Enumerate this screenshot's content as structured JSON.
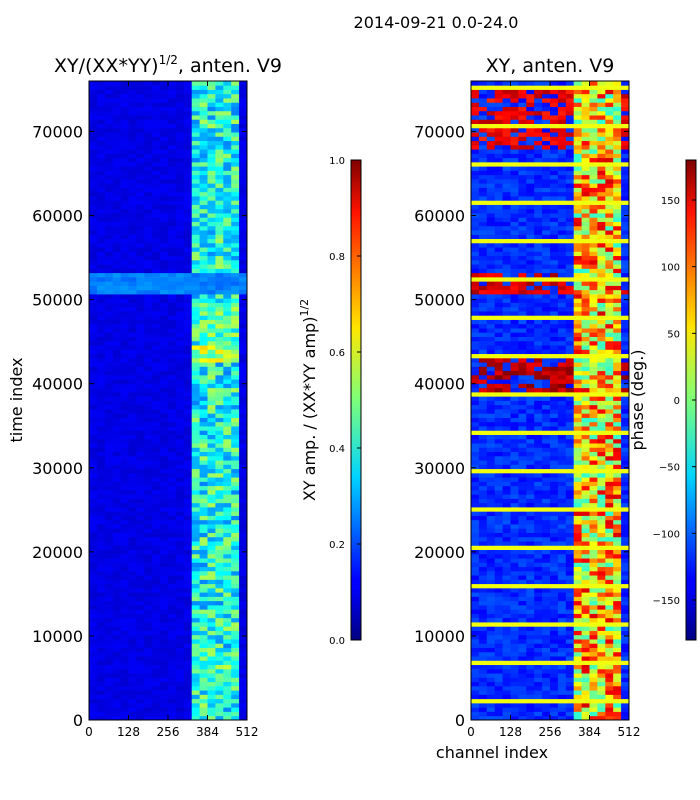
{
  "figure_title": "2014-09-21 0.0-24.0",
  "chart_data": [
    {
      "type": "heatmap",
      "panel": "left",
      "title": "XY/(XX*YY)",
      "title_superscript": "1/2",
      "title_suffix": ", anten. V9",
      "xlabel": "",
      "ylabel": "time index",
      "x_range": [
        0,
        512
      ],
      "y_range": [
        0,
        76000
      ],
      "x_ticks": [
        0,
        128,
        256,
        384,
        512
      ],
      "y_ticks": [
        0,
        10000,
        20000,
        30000,
        40000,
        50000,
        60000,
        70000
      ],
      "colorbar": {
        "label": "XY amp. / (XX*YY amp)",
        "label_superscript": "1/2",
        "range": [
          0.0,
          1.0
        ],
        "ticks": [
          "0.0",
          "0.2",
          "0.4",
          "0.6",
          "0.8",
          "1.0"
        ],
        "tick_values": [
          0.0,
          0.2,
          0.4,
          0.6,
          0.8,
          1.0
        ],
        "colormap": "jet"
      },
      "description_values": {
        "background_level": 0.1,
        "band_channels": [
          325,
          475
        ],
        "band_level": 0.4,
        "bright_rows": [
          [
            50500,
            53000,
            0.25
          ],
          [
            42500,
            44500,
            0.55
          ],
          [
            45000,
            49500,
            0.45
          ],
          [
            59000,
            65000,
            0.4
          ],
          [
            5500,
            7500,
            0.45
          ]
        ]
      }
    },
    {
      "type": "heatmap",
      "panel": "right",
      "title": "XY, anten. V9",
      "xlabel": "channel index",
      "ylabel": "",
      "x_range": [
        0,
        512
      ],
      "y_range": [
        0,
        76000
      ],
      "x_ticks": [
        0,
        128,
        256,
        384,
        512
      ],
      "y_ticks": [
        0,
        10000,
        20000,
        30000,
        40000,
        50000,
        60000,
        70000
      ],
      "colorbar": {
        "label": "phase (deg.)",
        "range": [
          -180,
          180
        ],
        "ticks": [
          "−150",
          "−100",
          "−50",
          "0",
          "50",
          "100",
          "150"
        ],
        "tick_values": [
          -150,
          -100,
          -50,
          0,
          50,
          100,
          150
        ],
        "colormap": "jet"
      },
      "description_values": {
        "background_level": -120,
        "band_channels": [
          325,
          475
        ],
        "band_level": 60,
        "flagged_rows_level": 40,
        "red_blocks": [
          [
            50500,
            53000,
            150
          ],
          [
            68000,
            75000,
            140
          ],
          [
            39000,
            43000,
            160
          ]
        ]
      }
    }
  ]
}
